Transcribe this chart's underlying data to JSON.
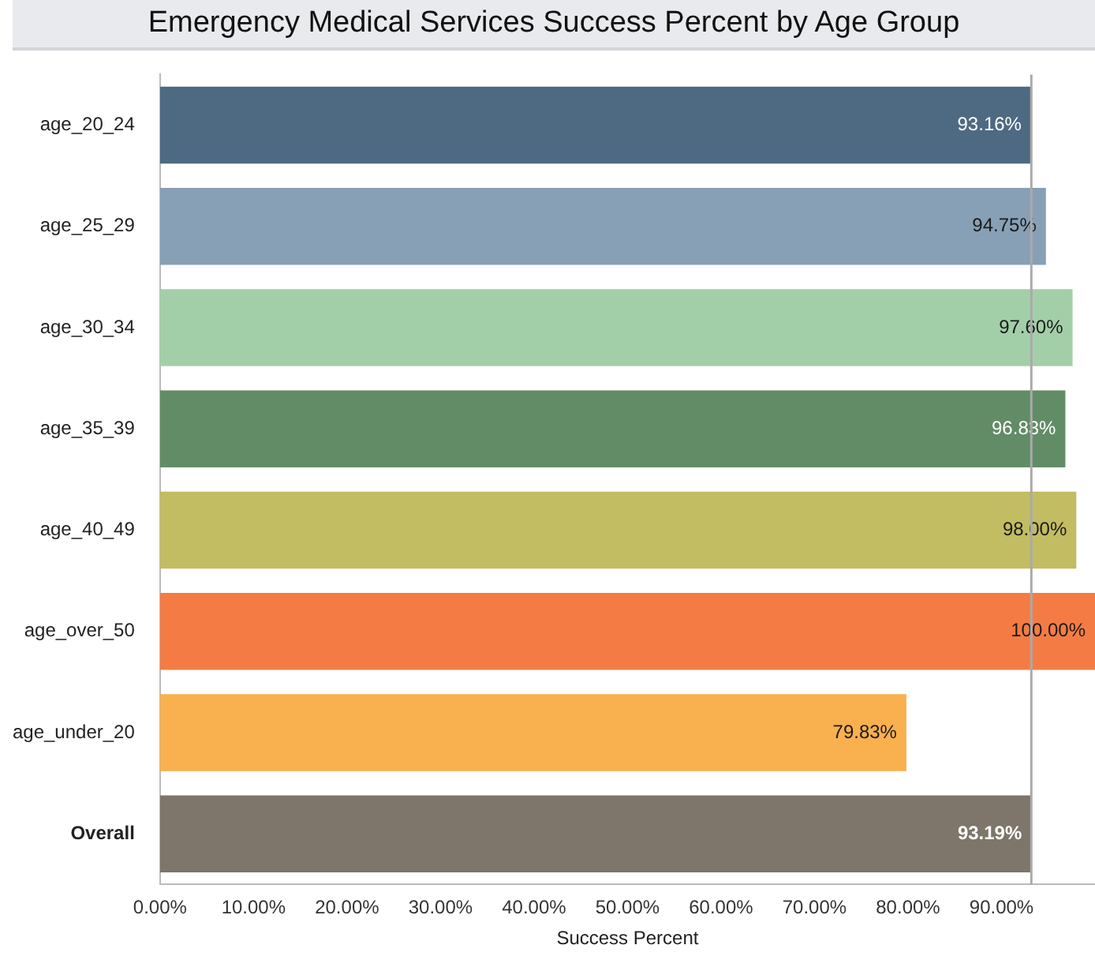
{
  "chart_data": {
    "type": "bar",
    "orientation": "horizontal",
    "title": "Emergency Medical Services Success Percent by Age Group",
    "xlabel": "Success Percent",
    "categories": [
      "age_20_24",
      "age_25_29",
      "age_30_34",
      "age_35_39",
      "age_40_49",
      "age_over_50",
      "age_under_20",
      "Overall"
    ],
    "values": [
      93.16,
      94.75,
      97.6,
      96.83,
      98.0,
      100.0,
      79.83,
      93.19
    ],
    "colors": [
      "#4e6a82",
      "#87a0b6",
      "#a3cfa8",
      "#628c66",
      "#c2bc62",
      "#f47c44",
      "#f9b04e",
      "#7e756b"
    ],
    "value_labels": [
      "93.16%",
      "94.75%",
      "97.60%",
      "96.83%",
      "98.00%",
      "100.00%",
      "79.83%",
      "93.19%"
    ],
    "xlim": [
      0,
      100
    ],
    "xticks": [
      {
        "value": 0,
        "label": "0.00%"
      },
      {
        "value": 10,
        "label": "10.00%"
      },
      {
        "value": 20,
        "label": "20.00%"
      },
      {
        "value": 30,
        "label": "30.00%"
      },
      {
        "value": 40,
        "label": "40.00%"
      },
      {
        "value": 50,
        "label": "50.00%"
      },
      {
        "value": 60,
        "label": "60.00%"
      },
      {
        "value": 70,
        "label": "70.00%"
      },
      {
        "value": 80,
        "label": "80.00%"
      },
      {
        "value": 90,
        "label": "90.00%"
      }
    ],
    "ref_lines": [
      {
        "axis": "x",
        "value": 93.19,
        "color": "#aaaaaa"
      }
    ]
  }
}
